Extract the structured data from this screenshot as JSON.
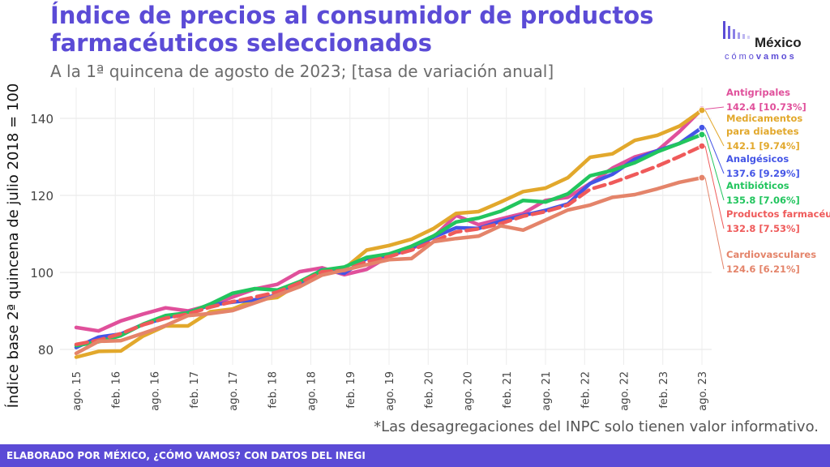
{
  "header": {
    "title": "Índice de precios al consumidor de productos farmacéuticos seleccionados",
    "subtitle": "A la 1ª quincena de agosto de 2023; [tasa de variación anual]"
  },
  "logo": {
    "word": "México",
    "sub_light": "cómo",
    "sub_bold": "vamos"
  },
  "note": "*Las desagregaciones del INPC solo tienen valor informativo.",
  "footer": {
    "credit": "ELABORADO POR MÉXICO, ¿CÓMO VAMOS? CON DATOS DEL INEGI"
  },
  "colors": {
    "accent": "#5b4bd6",
    "antigripales": "#e0509b",
    "diabetes": "#e2a82c",
    "analgesicos": "#4455e6",
    "antibioticos": "#22c55e",
    "farmaceuticos": "#ef5a5a",
    "cardiovasculares": "#e4846a"
  },
  "chart_data": {
    "type": "line",
    "ylabel": "Índice base 2ª quincena de julio 2018 = 100",
    "xlabel": "",
    "ylim": [
      76,
      148
    ],
    "yticks": [
      80,
      100,
      120,
      140
    ],
    "x_ticks": [
      "ago. 15",
      "feb. 16",
      "ago. 16",
      "feb. 17",
      "ago. 17",
      "feb. 18",
      "ago. 18",
      "feb. 19",
      "ago. 19",
      "feb. 20",
      "ago. 20",
      "feb. 21",
      "ago. 21",
      "feb. 22",
      "ago. 22",
      "feb. 23",
      "ago. 23"
    ],
    "grid": true,
    "series": [
      {
        "name": "Antigripales",
        "value_label": "142.4 [10.73%]",
        "color": "#e0509b",
        "dashed": false,
        "values": [
          85.7,
          84.8,
          87.4,
          89.2,
          90.8,
          90.0,
          91.5,
          93.6,
          95.7,
          96.9,
          100.2,
          101.2,
          99.4,
          100.8,
          104.2,
          106.1,
          109.2,
          114.8,
          112.4,
          113.9,
          115.3,
          118.7,
          119.5,
          123.1,
          127.1,
          130.0,
          131.6,
          136.6,
          142.4
        ]
      },
      {
        "name": "Medicamentos para diabetes",
        "value_label": "142.1 [9.74%]",
        "color": "#e2a82c",
        "dashed": false,
        "values": [
          78.0,
          79.5,
          79.6,
          83.5,
          86.1,
          86.1,
          89.8,
          90.5,
          92.8,
          93.5,
          97.2,
          100.4,
          101.0,
          105.8,
          107.0,
          108.6,
          111.4,
          115.3,
          115.8,
          118.3,
          121.0,
          121.9,
          124.6,
          129.9,
          130.8,
          134.3,
          135.6,
          138.0,
          142.1
        ]
      },
      {
        "name": "Analgésicos",
        "value_label": "137.6 [9.29%]",
        "color": "#4455e6",
        "dashed": false,
        "values": [
          80.5,
          83.2,
          84.0,
          86.5,
          88.2,
          89.6,
          91.5,
          92.3,
          92.9,
          94.1,
          97.0,
          100.7,
          99.8,
          103.6,
          104.5,
          106.4,
          109.2,
          111.6,
          111.4,
          113.3,
          114.8,
          116.1,
          117.8,
          123.1,
          125.5,
          129.4,
          131.6,
          133.5,
          137.6
        ]
      },
      {
        "name": "Antibióticos",
        "value_label": "135.8 [7.06%]",
        "color": "#22c55e",
        "dashed": false,
        "values": [
          81.0,
          82.0,
          83.6,
          86.6,
          88.8,
          89.5,
          91.8,
          94.6,
          95.8,
          95.4,
          97.6,
          100.6,
          101.4,
          103.9,
          104.8,
          106.8,
          109.5,
          113.1,
          114.1,
          115.9,
          118.7,
          118.3,
          120.4,
          125.1,
          126.5,
          128.5,
          131.3,
          133.5,
          135.8
        ]
      },
      {
        "name": "Productos farmacéuticos",
        "value_label": "132.8 [7.53%]",
        "color": "#ef5a5a",
        "dashed": true,
        "values": [
          81.3,
          82.4,
          84.1,
          86.4,
          88.1,
          89.2,
          91.0,
          92.4,
          93.6,
          94.9,
          97.3,
          100.2,
          100.5,
          102.8,
          104.1,
          105.8,
          108.1,
          110.5,
          111.3,
          112.7,
          114.6,
          115.8,
          117.5,
          121.6,
          123.3,
          125.4,
          127.6,
          130.1,
          132.8
        ]
      },
      {
        "name": "Cardiovasculares",
        "value_label": "124.6 [6.21%]",
        "color": "#e4846a",
        "dashed": false,
        "values": [
          79.0,
          82.1,
          82.3,
          84.2,
          86.2,
          88.8,
          89.3,
          90.1,
          92.1,
          94.1,
          96.3,
          99.3,
          100.6,
          102.0,
          103.3,
          103.6,
          108.0,
          108.8,
          109.4,
          112.1,
          111.0,
          113.6,
          116.2,
          117.5,
          119.5,
          120.2,
          121.7,
          123.4,
          124.6
        ]
      }
    ]
  }
}
